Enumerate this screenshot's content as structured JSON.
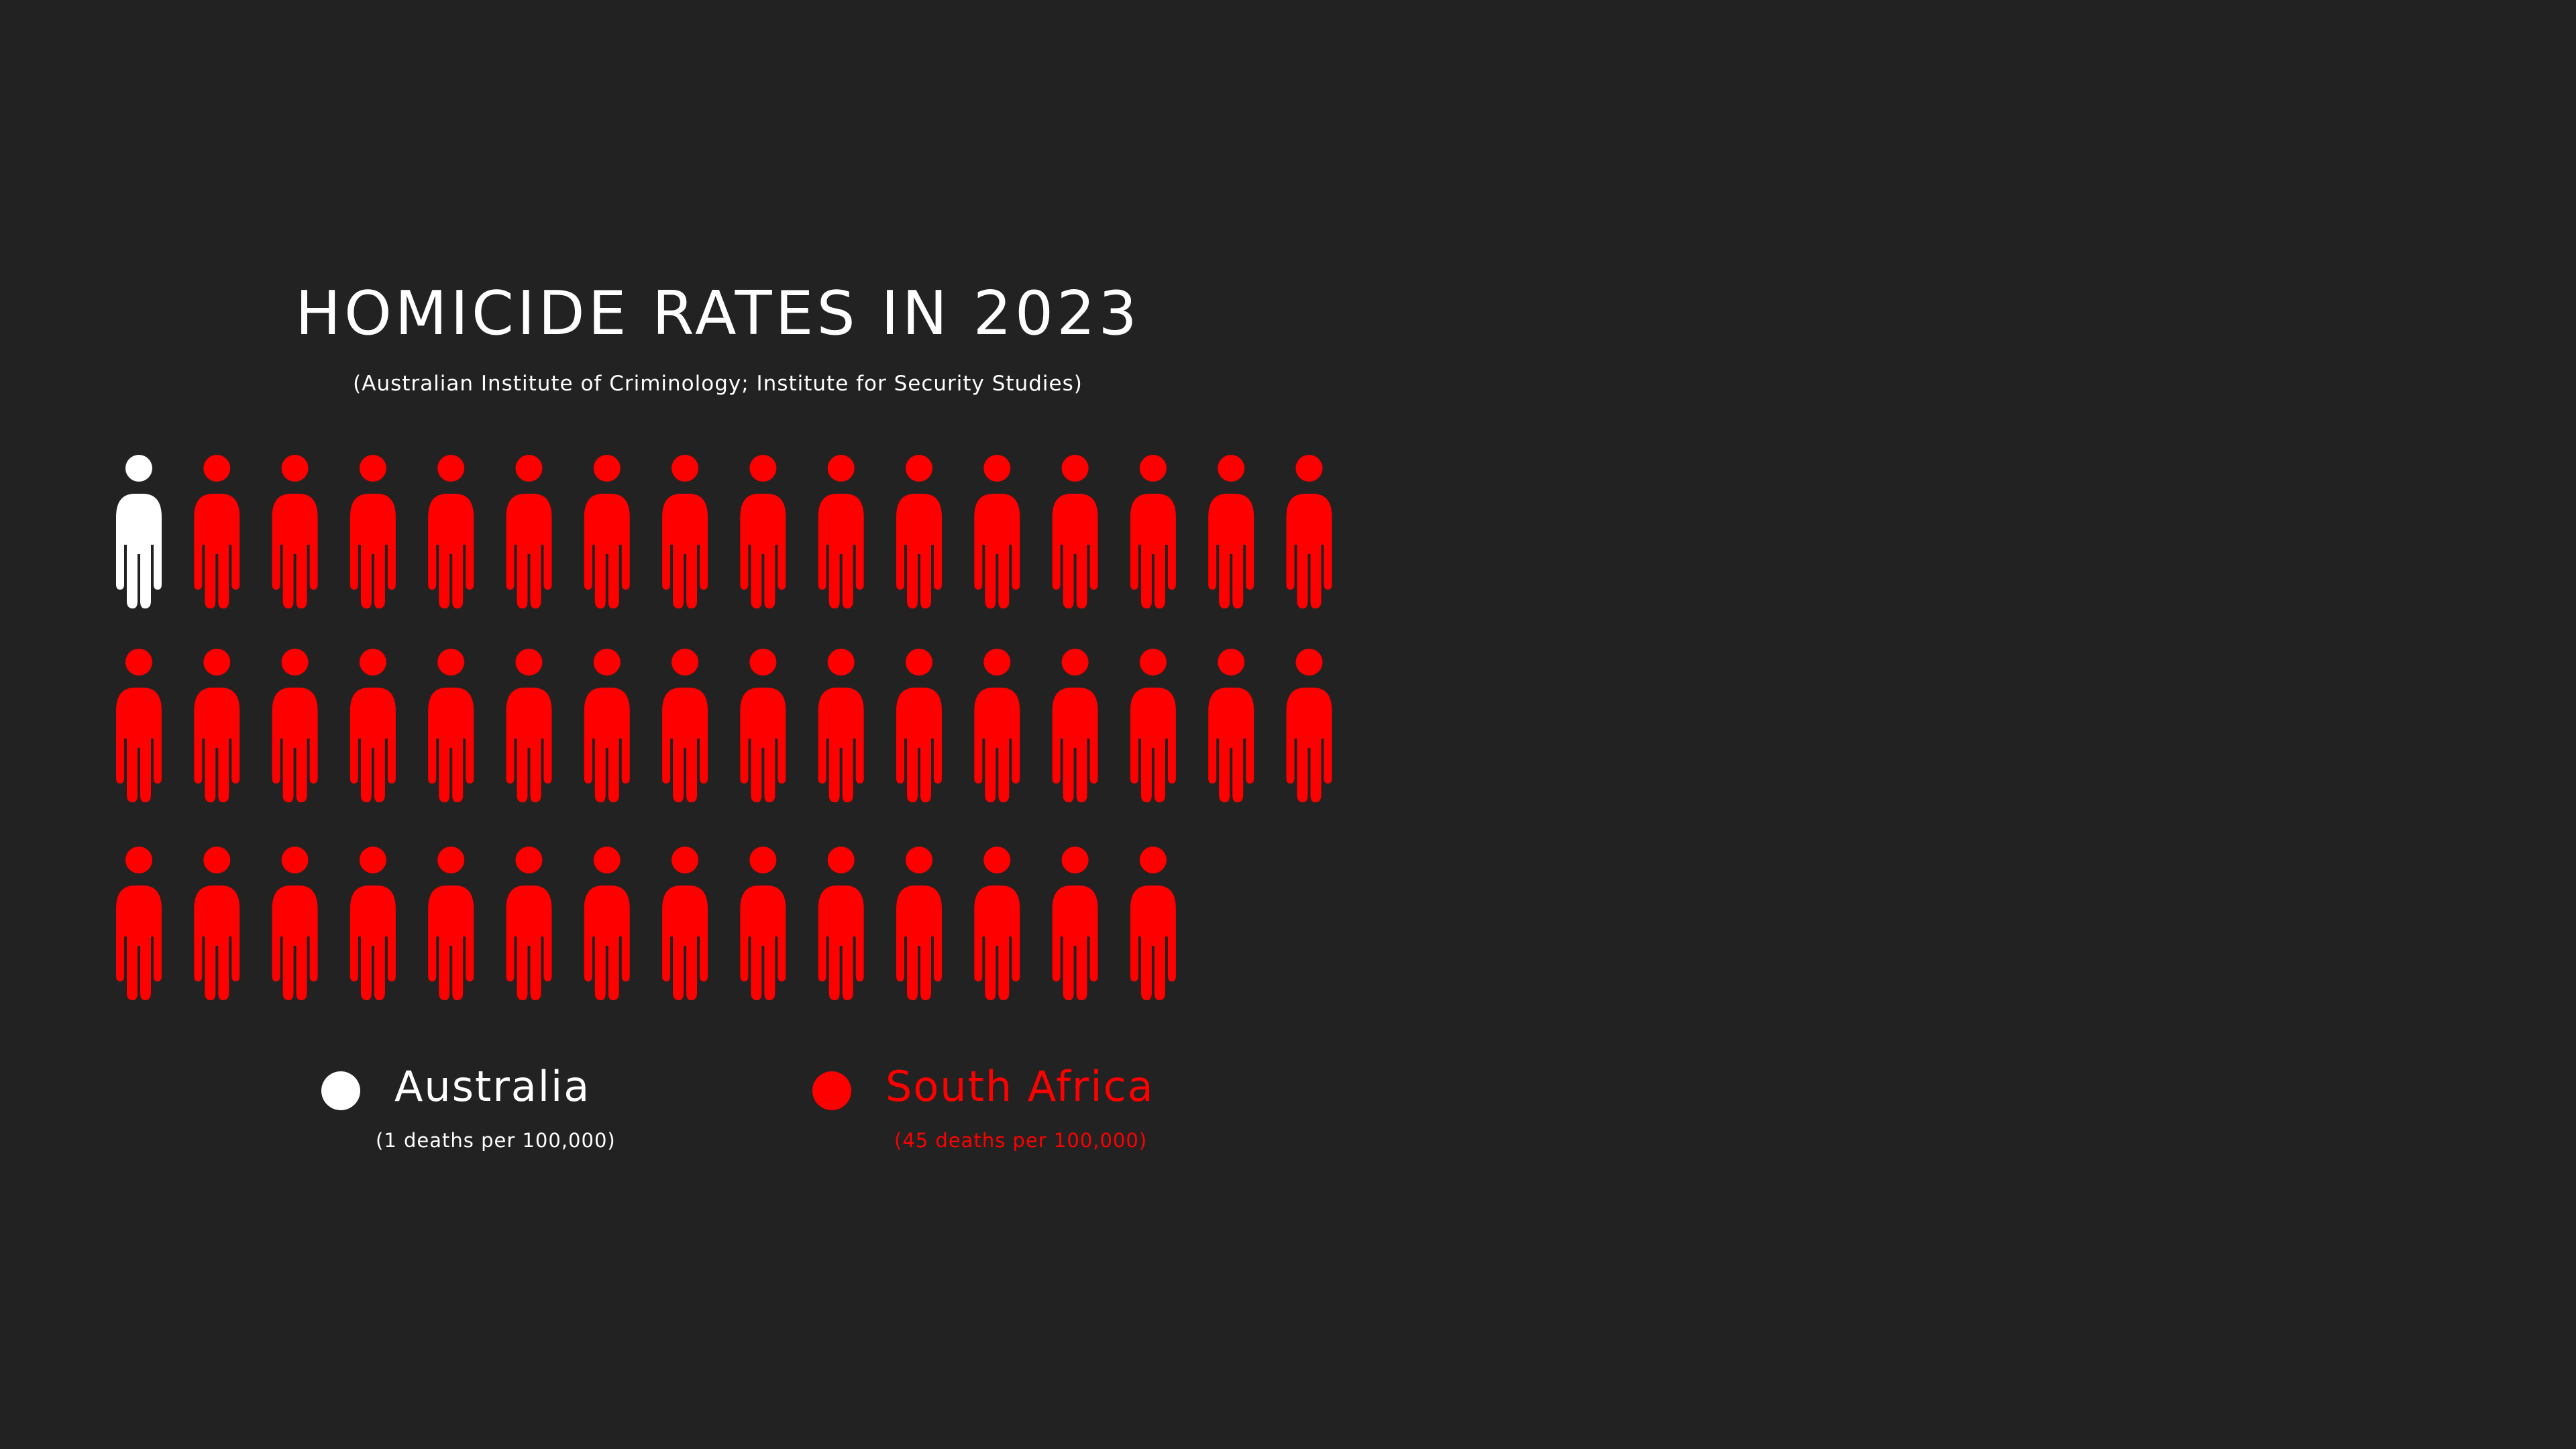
{
  "chart_data": {
    "type": "pictograph",
    "title": "HOMICIDE RATES IN 2023",
    "subtitle": "(Australian Institute of Criminology; Institute for Security Studies)",
    "unit_icon": "person-icon",
    "series": [
      {
        "name": "Australia",
        "value": 1,
        "note": "(1 deaths per 100,000)",
        "color": "#ffffff"
      },
      {
        "name": "South Africa",
        "value": 45,
        "note": "(45 deaths per 100,000)",
        "color": "#ff0000"
      }
    ]
  }
}
